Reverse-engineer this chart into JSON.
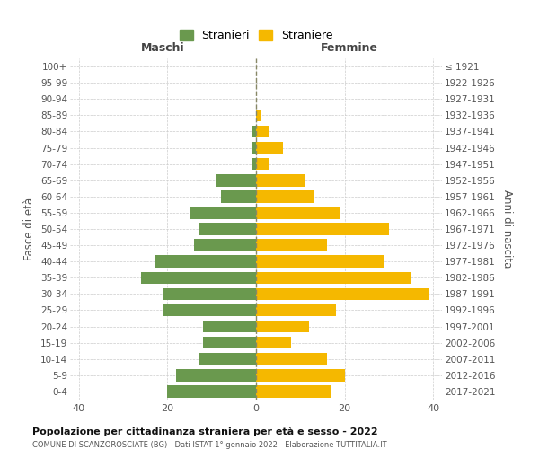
{
  "age_groups": [
    "0-4",
    "5-9",
    "10-14",
    "15-19",
    "20-24",
    "25-29",
    "30-34",
    "35-39",
    "40-44",
    "45-49",
    "50-54",
    "55-59",
    "60-64",
    "65-69",
    "70-74",
    "75-79",
    "80-84",
    "85-89",
    "90-94",
    "95-99",
    "100+"
  ],
  "birth_years": [
    "2017-2021",
    "2012-2016",
    "2007-2011",
    "2002-2006",
    "1997-2001",
    "1992-1996",
    "1987-1991",
    "1982-1986",
    "1977-1981",
    "1972-1976",
    "1967-1971",
    "1962-1966",
    "1957-1961",
    "1952-1956",
    "1947-1951",
    "1942-1946",
    "1937-1941",
    "1932-1936",
    "1927-1931",
    "1922-1926",
    "≤ 1921"
  ],
  "males": [
    20,
    18,
    13,
    12,
    12,
    21,
    21,
    26,
    23,
    14,
    13,
    15,
    8,
    9,
    1,
    1,
    1,
    0,
    0,
    0,
    0
  ],
  "females": [
    17,
    20,
    16,
    8,
    12,
    18,
    39,
    35,
    29,
    16,
    30,
    19,
    13,
    11,
    3,
    6,
    3,
    1,
    0,
    0,
    0
  ],
  "male_color": "#6a994e",
  "female_color": "#f5b800",
  "bar_height": 0.75,
  "xlim": [
    -42,
    42
  ],
  "xticks": [
    -40,
    -20,
    0,
    20,
    40
  ],
  "xtick_labels": [
    "40",
    "20",
    "0",
    "20",
    "40"
  ],
  "title": "Popolazione per cittadinanza straniera per età e sesso - 2022",
  "subtitle": "COMUNE DI SCANZOROSCIATE (BG) - Dati ISTAT 1° gennaio 2022 - Elaborazione TUTTITALIA.IT",
  "ylabel_left": "Fasce di età",
  "ylabel_right": "Anni di nascita",
  "label_maschi": "Maschi",
  "label_femmine": "Femmine",
  "legend_stranieri": "Stranieri",
  "legend_straniere": "Straniere",
  "background_color": "#ffffff",
  "grid_color": "#cccccc"
}
